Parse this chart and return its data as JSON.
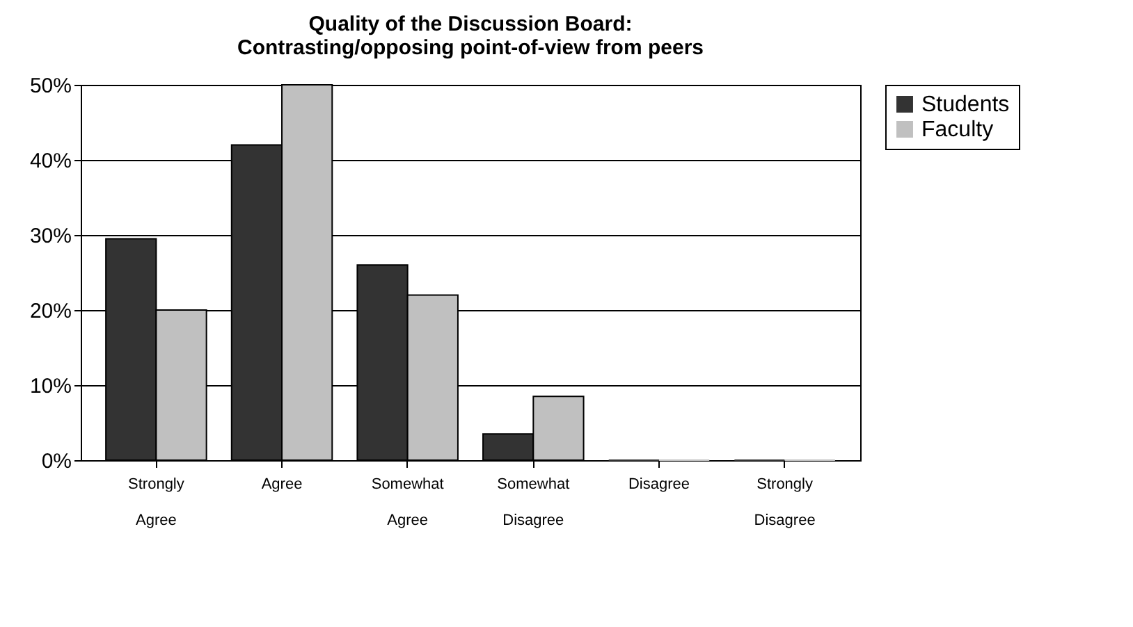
{
  "chart_data": {
    "type": "bar",
    "title": "Quality of the Discussion Board:\nContrasting/opposing point-of-view from peers",
    "categories": [
      "Strongly Agree",
      "Agree",
      "Somewhat Agree",
      "Somewhat Disagree",
      "Disagree",
      "Strongly Disagree"
    ],
    "series": [
      {
        "name": "Students",
        "color": "#333333",
        "values": [
          29.5,
          42,
          26,
          3.5,
          0,
          0
        ]
      },
      {
        "name": "Faculty",
        "color": "#c0c0c0",
        "values": [
          20,
          50,
          22,
          8.5,
          0,
          0
        ]
      }
    ],
    "ylim": [
      0,
      50
    ],
    "yticks": [
      {
        "value": 0,
        "label": "0%"
      },
      {
        "value": 10,
        "label": "10%"
      },
      {
        "value": 20,
        "label": "20%"
      },
      {
        "value": 30,
        "label": "30%"
      },
      {
        "value": 40,
        "label": "40%"
      },
      {
        "value": 50,
        "label": "50%"
      }
    ],
    "grid": "y",
    "legend": "right"
  }
}
